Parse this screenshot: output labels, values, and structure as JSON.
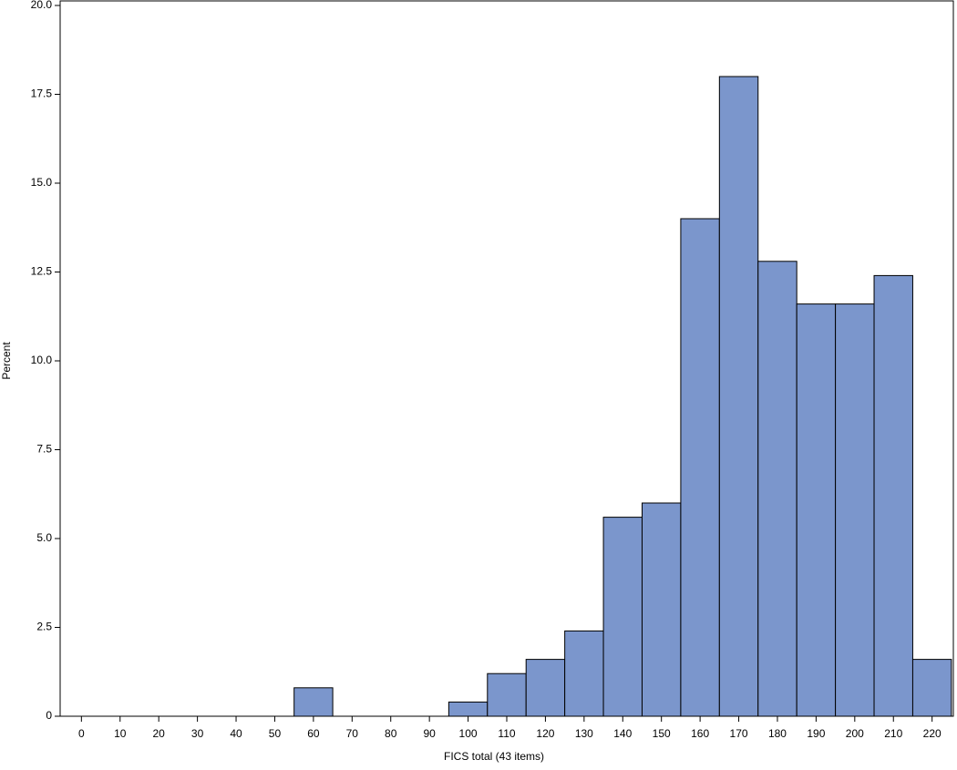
{
  "chart_data": {
    "type": "histogram",
    "x_label": "FICS total (43 items)",
    "y_label": "Percent",
    "bins": [
      -5,
      5,
      15,
      25,
      35,
      45,
      55,
      65,
      75,
      85,
      95,
      105,
      115,
      125,
      135,
      145,
      155,
      165,
      175,
      185,
      195,
      205,
      215,
      225
    ],
    "values": [
      0,
      0,
      0,
      0,
      0,
      0,
      0.8,
      0,
      0,
      0,
      0.4,
      1.2,
      1.6,
      2.4,
      5.6,
      6.0,
      14.0,
      18.0,
      12.8,
      11.6,
      11.6,
      12.4,
      1.6
    ],
    "color": "#7b96cc",
    "xlim": [
      -5.5,
      225.5
    ],
    "xticks": [
      0,
      10,
      20,
      30,
      40,
      50,
      60,
      70,
      80,
      90,
      100,
      110,
      120,
      130,
      140,
      150,
      160,
      170,
      180,
      190,
      200,
      210,
      220
    ],
    "ylim": [
      0,
      20
    ],
    "yticks": [
      0,
      2.5,
      {
        "value": 5,
        "label": "5.0"
      },
      7.5,
      {
        "value": 10,
        "label": "10.0"
      },
      12.5,
      {
        "value": 15,
        "label": "15.0"
      },
      17.5,
      {
        "value": 20,
        "label": "20.0"
      }
    ]
  }
}
